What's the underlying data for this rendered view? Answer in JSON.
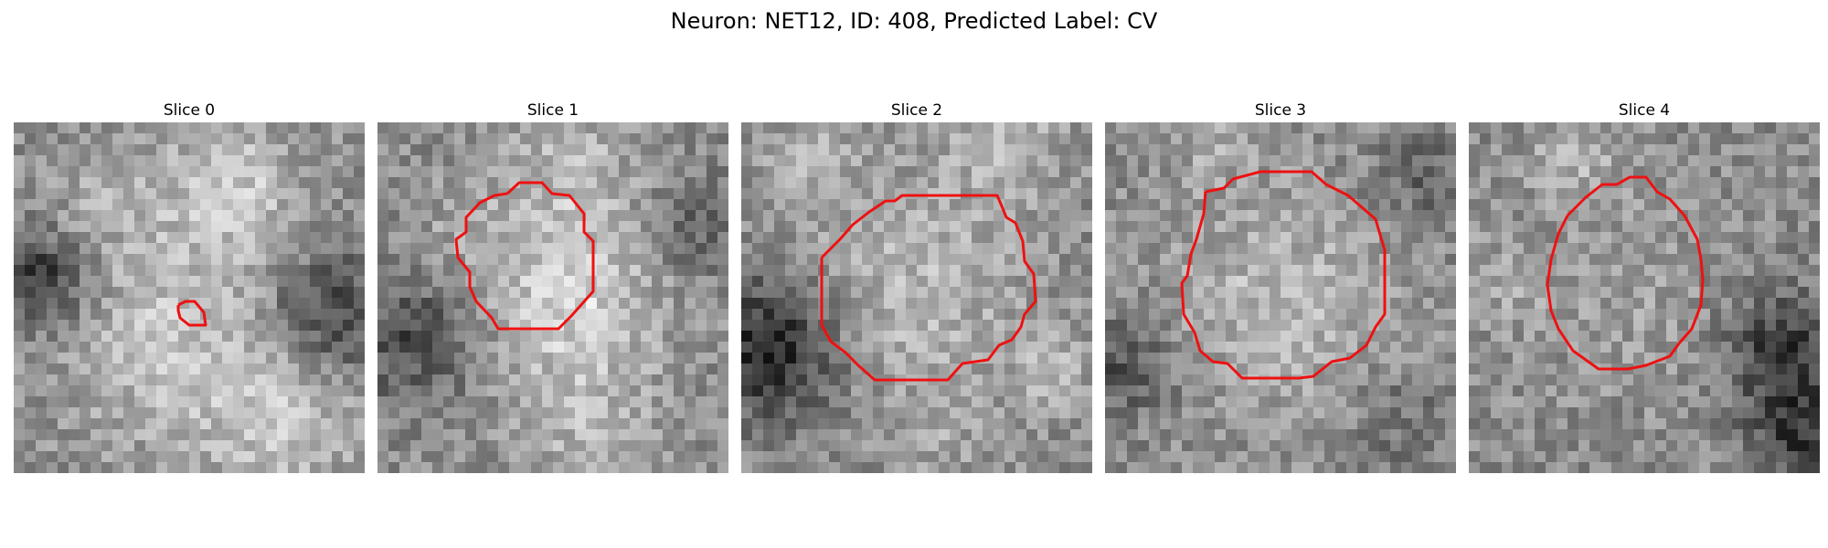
{
  "figure": {
    "title": "Neuron: NET12, ID: 408, Predicted Label: CV",
    "contour_color": "#ee1111"
  },
  "panels": [
    {
      "title": "Slice 0",
      "seed": 11,
      "blobs": [
        [
          0.62,
          0.18,
          0.14,
          60
        ],
        [
          0.45,
          0.62,
          0.22,
          55
        ],
        [
          0.78,
          0.85,
          0.16,
          50
        ],
        [
          0.08,
          0.45,
          0.1,
          -90
        ],
        [
          0.9,
          0.55,
          0.12,
          -80
        ],
        [
          0.25,
          0.22,
          0.12,
          25
        ]
      ]
    },
    {
      "title": "Slice 1",
      "seed": 23,
      "blobs": [
        [
          0.55,
          0.5,
          0.18,
          70
        ],
        [
          0.1,
          0.62,
          0.12,
          -70
        ],
        [
          0.55,
          0.12,
          0.14,
          40
        ],
        [
          0.9,
          0.3,
          0.1,
          -40
        ],
        [
          0.25,
          0.3,
          0.1,
          20
        ],
        [
          0.6,
          0.88,
          0.15,
          35
        ]
      ]
    },
    {
      "title": "Slice 2",
      "seed": 37,
      "blobs": [
        [
          0.5,
          0.48,
          0.22,
          45
        ],
        [
          0.08,
          0.65,
          0.14,
          -110
        ],
        [
          0.2,
          0.1,
          0.12,
          30
        ],
        [
          0.75,
          0.05,
          0.12,
          40
        ],
        [
          0.88,
          0.7,
          0.08,
          45
        ],
        [
          0.55,
          0.9,
          0.1,
          20
        ]
      ]
    },
    {
      "title": "Slice 3",
      "seed": 51,
      "blobs": [
        [
          0.5,
          0.5,
          0.22,
          45
        ],
        [
          0.05,
          0.7,
          0.1,
          -60
        ],
        [
          0.9,
          0.15,
          0.1,
          -40
        ],
        [
          0.85,
          0.85,
          0.1,
          -30
        ],
        [
          0.3,
          0.05,
          0.1,
          25
        ]
      ]
    },
    {
      "title": "Slice 4",
      "seed": 67,
      "blobs": [
        [
          0.48,
          0.5,
          0.2,
          20
        ],
        [
          0.9,
          0.65,
          0.12,
          -90
        ],
        [
          0.95,
          0.9,
          0.1,
          -80
        ],
        [
          0.3,
          0.1,
          0.1,
          35
        ],
        [
          0.1,
          0.45,
          0.1,
          25
        ]
      ]
    }
  ]
}
